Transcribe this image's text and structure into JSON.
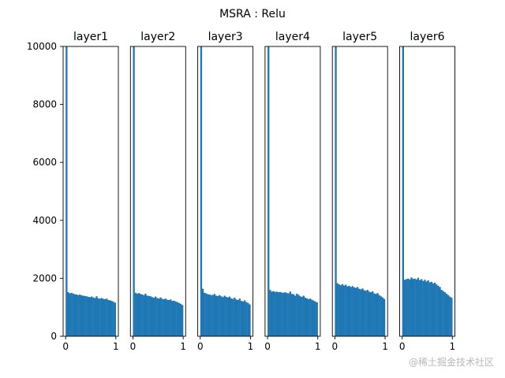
{
  "title": "MSRA : Relu",
  "watermark": "@稀土掘金技术社区",
  "colors": {
    "bar": "#1f77b4",
    "axis": "#000000",
    "background": "#ffffff"
  },
  "chart_data": {
    "type": "bar",
    "layout": "1x6 histograms sharing y axis",
    "ylim": [
      0,
      10000
    ],
    "yticks": [
      0,
      2000,
      4000,
      6000,
      8000,
      10000
    ],
    "xlim": [
      -0.05,
      1.05
    ],
    "xticks": [
      0,
      1
    ],
    "bins": 30,
    "bin_range": [
      0,
      1
    ],
    "grid": false,
    "legend": "none",
    "panels": [
      {
        "title": "layer1",
        "values": [
          10000,
          1520,
          1480,
          1500,
          1470,
          1450,
          1440,
          1420,
          1440,
          1410,
          1400,
          1390,
          1380,
          1360,
          1350,
          1370,
          1340,
          1320,
          1380,
          1310,
          1300,
          1320,
          1290,
          1280,
          1300,
          1250,
          1240,
          1220,
          1190,
          1160
        ]
      },
      {
        "title": "layer2",
        "values": [
          10000,
          1500,
          1470,
          1490,
          1460,
          1440,
          1420,
          1470,
          1400,
          1390,
          1380,
          1350,
          1330,
          1370,
          1320,
          1300,
          1340,
          1290,
          1280,
          1300,
          1260,
          1250,
          1270,
          1220,
          1230,
          1200,
          1180,
          1150,
          1120,
          1080
        ]
      },
      {
        "title": "layer3",
        "values": [
          10000,
          1640,
          1500,
          1480,
          1450,
          1440,
          1420,
          1430,
          1460,
          1400,
          1390,
          1420,
          1380,
          1350,
          1400,
          1360,
          1340,
          1370,
          1310,
          1290,
          1330,
          1270,
          1250,
          1300,
          1220,
          1200,
          1240,
          1180,
          1150,
          1100
        ]
      },
      {
        "title": "layer4",
        "values": [
          10000,
          1600,
          1540,
          1560,
          1530,
          1540,
          1520,
          1530,
          1510,
          1500,
          1520,
          1490,
          1480,
          1540,
          1460,
          1450,
          1400,
          1470,
          1430,
          1380,
          1360,
          1400,
          1330,
          1310,
          1280,
          1300,
          1260,
          1230,
          1200,
          1170
        ]
      },
      {
        "title": "layer5",
        "values": [
          10000,
          1830,
          1790,
          1760,
          1800,
          1750,
          1780,
          1720,
          1740,
          1700,
          1730,
          1690,
          1670,
          1700,
          1640,
          1620,
          1650,
          1590,
          1570,
          1600,
          1540,
          1520,
          1550,
          1480,
          1460,
          1490,
          1420,
          1380,
          1340,
          1290
        ]
      },
      {
        "title": "layer6",
        "values": [
          10000,
          1950,
          1970,
          1990,
          1960,
          2030,
          1980,
          1990,
          1960,
          2020,
          1940,
          1970,
          1910,
          1950,
          1890,
          1930,
          1860,
          1880,
          1820,
          1850,
          1790,
          1740,
          1700,
          1600,
          1560,
          1520,
          1470,
          1420,
          1370,
          1330
        ]
      }
    ]
  }
}
